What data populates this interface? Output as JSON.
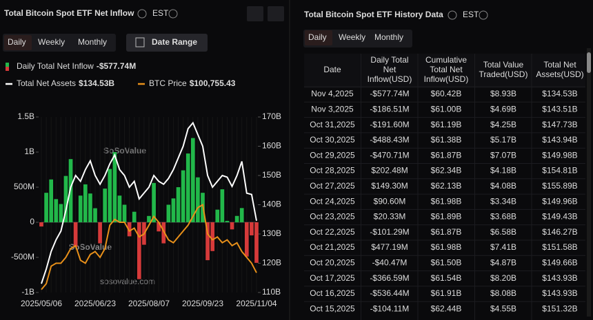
{
  "left_panel": {
    "title": "Total Bitcoin Spot ETF Net Inflow",
    "timezone": "EST",
    "tabs": [
      "Daily",
      "Weekly",
      "Monthly"
    ],
    "date_range": "Date Range",
    "legend_values": [
      "-$577.74M",
      "$134.53B",
      "$100,755.43"
    ],
    "watermark": "SoSoValue",
    "watermark_url": "sosovalue.com"
  },
  "chart_data": {
    "type": "combo",
    "categories": [
      "2025/05/06",
      null,
      null,
      null,
      null,
      null,
      null,
      null,
      null,
      null,
      null,
      "2025/06/23",
      null,
      null,
      null,
      null,
      null,
      null,
      null,
      null,
      null,
      null,
      "2025/08/07",
      null,
      null,
      null,
      null,
      null,
      null,
      null,
      null,
      null,
      null,
      "2025/09/23",
      null,
      null,
      null,
      null,
      null,
      null,
      null,
      null,
      null,
      null,
      "2025/11/04"
    ],
    "series": [
      {
        "name": "Daily Total Net Inflow",
        "color": "#22b84a",
        "negative_color": "#d63a3a",
        "values": [
          -60000000.0,
          420000000.0,
          610000000.0,
          330000000.0,
          260000000.0,
          660000000.0,
          900000000.0,
          -350000000.0,
          380000000.0,
          540000000.0,
          410000000.0,
          200000000.0,
          -300000000.0,
          480000000.0,
          760000000.0,
          1000000000.0,
          380000000.0,
          250000000.0,
          -200000000.0,
          150000000.0,
          -810000000.0,
          -320000000.0,
          90000000.0,
          560000000.0,
          -130000000.0,
          -300000000.0,
          250000000.0,
          340000000.0,
          500000000.0,
          740000000.0,
          980000000.0,
          1200000000.0,
          640000000.0,
          420000000.0,
          -540000000.0,
          -410000000.0,
          180000000.0,
          470000000.0,
          20330000.0,
          -101290000.0,
          90600000.0,
          202480000.0,
          -488430000.0,
          -186510000.0,
          -577740000.0
        ]
      },
      {
        "name": "Total Net Assets",
        "color": "#ffffff",
        "axis": "y2",
        "values": [
          113000000000.0,
          118000000000.0,
          124000000000.0,
          128000000000.0,
          131000000000.0,
          138000000000.0,
          146000000000.0,
          150000000000.0,
          148000000000.0,
          152000000000.0,
          155000000000.0,
          150000000000.0,
          147000000000.0,
          150000000000.0,
          154000000000.0,
          157000000000.0,
          152000000000.0,
          150000000000.0,
          146000000000.0,
          148000000000.0,
          142000000000.0,
          144000000000.0,
          146000000000.0,
          150000000000.0,
          148000000000.0,
          147000000000.0,
          149000000000.0,
          152000000000.0,
          156000000000.0,
          160000000000.0,
          166000000000.0,
          168000000000.0,
          164000000000.0,
          160000000000.0,
          150000000000.0,
          146000000000.0,
          148000000000.0,
          150000000000.0,
          149430000000.0,
          146270000000.0,
          149960000000.0,
          154810000000.0,
          143940000000.0,
          143510000000.0,
          134530000000.0
        ]
      },
      {
        "name": "BTC Price",
        "color": "#e8901a",
        "axis": "y3",
        "values": [
          95000,
          97000,
          103000,
          104000,
          104000,
          106000,
          109000,
          110000,
          105000,
          104000,
          107000,
          108000,
          106000,
          109000,
          117000,
          119000,
          118000,
          118000,
          115000,
          116000,
          113000,
          114000,
          117000,
          120000,
          118000,
          115000,
          112000,
          111000,
          113000,
          115000,
          117000,
          120000,
          123000,
          124000,
          114000,
          112000,
          113000,
          111000,
          112000,
          110000,
          111000,
          108000,
          106000,
          104000,
          100755.43
        ]
      }
    ],
    "ylim": [
      -1000000000.0,
      1500000000.0
    ],
    "yticks": [
      {
        "value": -1000000000.0,
        "label": "-1B"
      },
      {
        "value": -500000000.0,
        "label": "-500M"
      },
      0,
      {
        "value": 500000000.0,
        "label": "500M"
      },
      {
        "value": 1000000000.0,
        "label": "1B"
      },
      {
        "value": 1500000000.0,
        "label": "1.5B"
      }
    ],
    "y2lim": [
      110000000000.0,
      170000000000.0
    ],
    "y2ticks": [
      {
        "value": 110000000000.0,
        "label": "110B"
      },
      {
        "value": 120000000000.0,
        "label": "120B"
      },
      {
        "value": 130000000000.0,
        "label": "130B"
      },
      {
        "value": 140000000000.0,
        "label": "140B"
      },
      {
        "value": 150000000000.0,
        "label": "150B"
      },
      {
        "value": 160000000000.0,
        "label": "160B"
      },
      {
        "value": 170000000000.0,
        "label": "170B"
      }
    ],
    "y3lim": [
      94000,
      154000
    ]
  },
  "right_panel": {
    "title": "Total Bitcoin Spot ETF History Data",
    "timezone": "EST",
    "tabs": [
      "Daily",
      "Weekly",
      "Monthly"
    ],
    "table": {
      "columns": [
        "Date",
        "Daily Total Net Inflow(USD)",
        "Cumulative Total Net Inflow(USD)",
        "Total Value Traded(USD)",
        "Total Net Assets(USD)"
      ],
      "rows": [
        [
          "Nov 4,2025",
          "-$577.74M",
          "$60.42B",
          "$8.93B",
          "$134.53B"
        ],
        [
          "Nov 3,2025",
          "-$186.51M",
          "$61.00B",
          "$4.69B",
          "$143.51B"
        ],
        [
          "Oct 31,2025",
          "-$191.60M",
          "$61.19B",
          "$4.25B",
          "$147.73B"
        ],
        [
          "Oct 30,2025",
          "-$488.43M",
          "$61.38B",
          "$5.17B",
          "$143.94B"
        ],
        [
          "Oct 29,2025",
          "-$470.71M",
          "$61.87B",
          "$7.07B",
          "$149.98B"
        ],
        [
          "Oct 28,2025",
          "$202.48M",
          "$62.34B",
          "$4.18B",
          "$154.81B"
        ],
        [
          "Oct 27,2025",
          "$149.30M",
          "$62.13B",
          "$4.08B",
          "$155.89B"
        ],
        [
          "Oct 24,2025",
          "$90.60M",
          "$61.98B",
          "$3.34B",
          "$149.96B"
        ],
        [
          "Oct 23,2025",
          "$20.33M",
          "$61.89B",
          "$3.68B",
          "$149.43B"
        ],
        [
          "Oct 22,2025",
          "-$101.29M",
          "$61.87B",
          "$6.58B",
          "$146.27B"
        ],
        [
          "Oct 21,2025",
          "$477.19M",
          "$61.98B",
          "$7.41B",
          "$151.58B"
        ],
        [
          "Oct 20,2025",
          "-$40.47M",
          "$61.50B",
          "$4.87B",
          "$149.66B"
        ],
        [
          "Oct 17,2025",
          "-$366.59M",
          "$61.54B",
          "$8.20B",
          "$143.93B"
        ],
        [
          "Oct 16,2025",
          "-$536.44M",
          "$61.91B",
          "$8.08B",
          "$143.93B"
        ],
        [
          "Oct 15,2025",
          "-$104.11M",
          "$62.44B",
          "$4.55B",
          "$151.32B"
        ]
      ]
    }
  }
}
